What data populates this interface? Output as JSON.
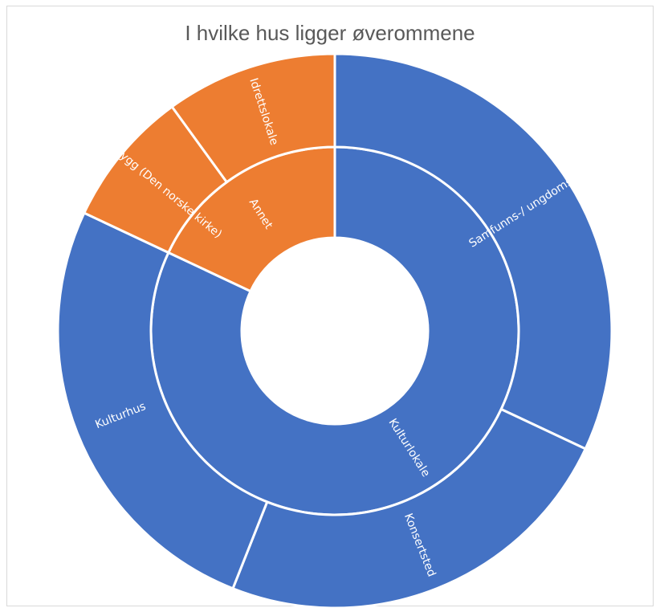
{
  "chart_data": {
    "type": "sunburst",
    "title": "I hvilke hus ligger øverommene",
    "colors": {
      "Kulturlokale": "#4472c4",
      "Annet": "#ed7d31",
      "separator": "#ffffff"
    },
    "inner_ring": [
      {
        "name": "Kulturlokale",
        "value": 82
      },
      {
        "name": "Annet",
        "value": 18
      }
    ],
    "outer_ring": [
      {
        "name": "Samfunns-/ ungdomshus",
        "parent": "Kulturlokale",
        "value": 32
      },
      {
        "name": "Konsertsted",
        "parent": "Kulturlokale",
        "value": 24
      },
      {
        "name": "Kulturhus",
        "parent": "Kulturlokale",
        "value": 26
      },
      {
        "name": "Kirkebygg (Den norske kirke)",
        "parent": "Annet",
        "value": 8
      },
      {
        "name": "Idrettslokale",
        "parent": "Annet",
        "value": 10
      }
    ]
  }
}
